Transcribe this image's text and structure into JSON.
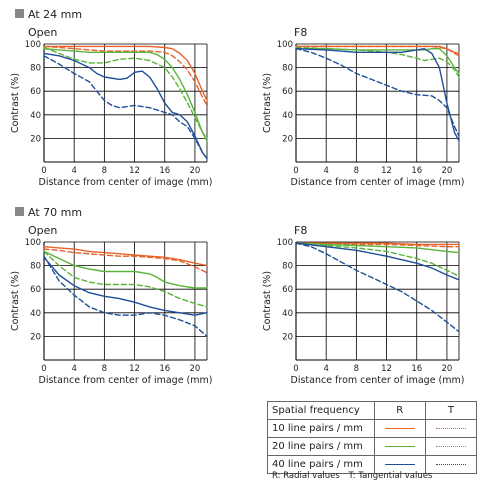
{
  "colors": {
    "10": "#e8632a",
    "20": "#5ab43a",
    "40": "#1f4f9a"
  },
  "chart_data": [
    {
      "type": "line",
      "header": "At 24 mm",
      "title": "Open",
      "xlabel": "Distance from center of image (mm)",
      "ylabel": "Contrast (%)",
      "xlim": [
        0,
        21.6
      ],
      "ylim": [
        0,
        100
      ],
      "xticks": [
        0,
        4,
        8,
        12,
        16,
        20
      ],
      "yticks": [
        20,
        40,
        60,
        80,
        100
      ],
      "grid": true,
      "series": [
        {
          "freq": "10",
          "kind": "R",
          "x": [
            0,
            2,
            4,
            6,
            8,
            10,
            12,
            14,
            16,
            17,
            18,
            19,
            20,
            21,
            21.6
          ],
          "values": [
            98,
            98,
            98,
            98,
            98,
            98,
            98,
            98,
            97,
            96,
            92,
            86,
            75,
            60,
            52
          ]
        },
        {
          "freq": "10",
          "kind": "T",
          "x": [
            0,
            2,
            4,
            6,
            8,
            10,
            12,
            14,
            16,
            17,
            18,
            19,
            20,
            21,
            21.6
          ],
          "values": [
            98,
            97,
            96,
            95,
            94,
            94,
            94,
            94,
            93,
            90,
            85,
            78,
            68,
            55,
            48
          ]
        },
        {
          "freq": "20",
          "kind": "R",
          "x": [
            0,
            2,
            4,
            6,
            8,
            10,
            12,
            14,
            15,
            16,
            17,
            18,
            19,
            20,
            21,
            21.6
          ],
          "values": [
            96,
            95,
            94,
            93,
            93,
            93,
            93,
            93,
            91,
            87,
            80,
            70,
            57,
            42,
            25,
            18
          ]
        },
        {
          "freq": "20",
          "kind": "T",
          "x": [
            0,
            2,
            4,
            6,
            8,
            10,
            12,
            14,
            16,
            17,
            18,
            19,
            20,
            21,
            21.6
          ],
          "values": [
            97,
            92,
            87,
            84,
            84,
            87,
            88,
            86,
            80,
            72,
            62,
            50,
            38,
            25,
            20
          ]
        },
        {
          "freq": "40",
          "kind": "R",
          "x": [
            0,
            2,
            4,
            6,
            7,
            8,
            10,
            11,
            12,
            13,
            14,
            15,
            16,
            17,
            18,
            19,
            20,
            21,
            21.6
          ],
          "values": [
            92,
            90,
            86,
            80,
            75,
            72,
            70,
            71,
            76,
            77,
            72,
            62,
            50,
            42,
            40,
            34,
            22,
            8,
            3
          ]
        },
        {
          "freq": "40",
          "kind": "T",
          "x": [
            0,
            2,
            4,
            6,
            7,
            8,
            9,
            10,
            12,
            14,
            16,
            17,
            18,
            19,
            20,
            21,
            21.6
          ],
          "values": [
            90,
            83,
            75,
            68,
            60,
            52,
            48,
            46,
            48,
            46,
            42,
            40,
            34,
            30,
            20,
            8,
            3
          ]
        }
      ]
    },
    {
      "type": "line",
      "title": "F8",
      "xlabel": "Distance from center of image (mm)",
      "ylabel": "Contrast (%)",
      "xlim": [
        0,
        21.6
      ],
      "ylim": [
        0,
        100
      ],
      "xticks": [
        0,
        4,
        8,
        12,
        16,
        20
      ],
      "yticks": [
        20,
        40,
        60,
        80,
        100
      ],
      "grid": true,
      "series": [
        {
          "freq": "10",
          "kind": "R",
          "x": [
            0,
            4,
            8,
            12,
            14,
            16,
            17,
            18,
            19,
            20,
            21,
            21.6
          ],
          "values": [
            98,
            98,
            98,
            98,
            98,
            98,
            98,
            98,
            98,
            96,
            93,
            92
          ]
        },
        {
          "freq": "10",
          "kind": "T",
          "x": [
            0,
            4,
            8,
            12,
            14,
            16,
            17,
            18,
            19,
            20,
            21,
            21.6
          ],
          "values": [
            98,
            98,
            98,
            98,
            98,
            98,
            98,
            98,
            97,
            96,
            92,
            90
          ]
        },
        {
          "freq": "20",
          "kind": "R",
          "x": [
            0,
            4,
            8,
            12,
            14,
            16,
            17,
            18,
            19,
            20,
            21,
            21.6
          ],
          "values": [
            96,
            96,
            95,
            95,
            95,
            95,
            95,
            96,
            96,
            90,
            80,
            75
          ]
        },
        {
          "freq": "20",
          "kind": "T",
          "x": [
            0,
            4,
            8,
            12,
            14,
            16,
            17,
            18,
            19,
            20,
            21,
            21.6
          ],
          "values": [
            97,
            96,
            95,
            93,
            91,
            88,
            86,
            87,
            88,
            85,
            78,
            72
          ]
        },
        {
          "freq": "40",
          "kind": "R",
          "x": [
            0,
            4,
            8,
            12,
            14,
            16,
            17,
            18,
            19,
            20,
            21,
            21.6
          ],
          "values": [
            96,
            95,
            93,
            93,
            93,
            95,
            96,
            92,
            80,
            50,
            25,
            18
          ]
        },
        {
          "freq": "40",
          "kind": "T",
          "x": [
            0,
            2,
            4,
            6,
            8,
            10,
            12,
            14,
            16,
            18,
            19,
            20,
            21,
            21.6
          ],
          "values": [
            96,
            93,
            88,
            82,
            75,
            70,
            65,
            60,
            57,
            56,
            52,
            46,
            30,
            22
          ]
        }
      ]
    },
    {
      "type": "line",
      "header": "At 70 mm",
      "title": "Open",
      "xlabel": "Distance from center of image (mm)",
      "ylabel": "Contrast (%)",
      "xlim": [
        0,
        21.6
      ],
      "ylim": [
        0,
        100
      ],
      "xticks": [
        0,
        4,
        8,
        12,
        16,
        20
      ],
      "yticks": [
        20,
        40,
        60,
        80,
        100
      ],
      "grid": true,
      "series": [
        {
          "freq": "10",
          "kind": "R",
          "x": [
            0,
            2,
            4,
            6,
            8,
            10,
            12,
            14,
            16,
            18,
            20,
            21.6
          ],
          "values": [
            96,
            95,
            94,
            92,
            91,
            90,
            89,
            88,
            87,
            85,
            82,
            80
          ]
        },
        {
          "freq": "10",
          "kind": "T",
          "x": [
            0,
            2,
            4,
            6,
            8,
            10,
            12,
            14,
            16,
            18,
            20,
            21.6
          ],
          "values": [
            94,
            93,
            91,
            90,
            89,
            88,
            88,
            87,
            86,
            84,
            79,
            74
          ]
        },
        {
          "freq": "20",
          "kind": "R",
          "x": [
            0,
            2,
            4,
            6,
            8,
            10,
            12,
            14,
            15,
            16,
            18,
            20,
            21.6
          ],
          "values": [
            92,
            86,
            80,
            77,
            75,
            75,
            75,
            73,
            70,
            66,
            63,
            61,
            61
          ]
        },
        {
          "freq": "20",
          "kind": "T",
          "x": [
            0,
            2,
            4,
            6,
            8,
            10,
            12,
            14,
            16,
            18,
            20,
            21.6
          ],
          "values": [
            92,
            80,
            70,
            66,
            64,
            64,
            64,
            62,
            58,
            52,
            48,
            45
          ]
        },
        {
          "freq": "40",
          "kind": "R",
          "x": [
            0,
            2,
            4,
            6,
            8,
            10,
            12,
            14,
            16,
            18,
            20,
            21.6
          ],
          "values": [
            87,
            72,
            63,
            57,
            54,
            52,
            49,
            45,
            42,
            40,
            38,
            40
          ]
        },
        {
          "freq": "40",
          "kind": "T",
          "x": [
            0,
            2,
            4,
            6,
            8,
            10,
            12,
            14,
            16,
            18,
            20,
            21.6
          ],
          "values": [
            88,
            67,
            55,
            45,
            40,
            38,
            38,
            40,
            38,
            34,
            29,
            20
          ]
        }
      ]
    },
    {
      "type": "line",
      "title": "F8",
      "xlabel": "Distance from center of image (mm)",
      "ylabel": "Contrast (%)",
      "xlim": [
        0,
        21.6
      ],
      "ylim": [
        0,
        100
      ],
      "xticks": [
        0,
        4,
        8,
        12,
        16,
        20
      ],
      "yticks": [
        20,
        40,
        60,
        80,
        100
      ],
      "grid": true,
      "series": [
        {
          "freq": "10",
          "kind": "R",
          "x": [
            0,
            4,
            8,
            12,
            16,
            20,
            21.6
          ],
          "values": [
            99,
            99,
            99,
            99,
            98,
            98,
            98
          ]
        },
        {
          "freq": "10",
          "kind": "T",
          "x": [
            0,
            4,
            8,
            12,
            16,
            20,
            21.6
          ],
          "values": [
            99,
            99,
            98,
            98,
            97,
            96,
            96
          ]
        },
        {
          "freq": "20",
          "kind": "R",
          "x": [
            0,
            4,
            8,
            12,
            16,
            20,
            21.6
          ],
          "values": [
            99,
            98,
            97,
            96,
            95,
            92,
            91
          ]
        },
        {
          "freq": "20",
          "kind": "T",
          "x": [
            0,
            4,
            8,
            12,
            14,
            16,
            18,
            20,
            21.6
          ],
          "values": [
            99,
            97,
            95,
            92,
            89,
            86,
            82,
            76,
            71
          ]
        },
        {
          "freq": "40",
          "kind": "R",
          "x": [
            0,
            4,
            8,
            12,
            14,
            16,
            18,
            20,
            21.6
          ],
          "values": [
            99,
            96,
            93,
            88,
            85,
            82,
            78,
            72,
            68
          ]
        },
        {
          "freq": "40",
          "kind": "T",
          "x": [
            0,
            2,
            4,
            6,
            8,
            10,
            12,
            14,
            16,
            18,
            20,
            21.6
          ],
          "values": [
            99,
            96,
            90,
            83,
            76,
            70,
            64,
            58,
            50,
            42,
            32,
            24
          ]
        }
      ]
    }
  ],
  "legend": {
    "header": "Spatial frequency",
    "r": "R",
    "t": "T",
    "rows": [
      {
        "label": "10 line pairs / mm",
        "freq": "10"
      },
      {
        "label": "20 line pairs / mm",
        "freq": "20"
      },
      {
        "label": "40 line pairs / mm",
        "freq": "40"
      }
    ]
  },
  "footnote": {
    "r": "R: Radial values",
    "t": "T: Tangential values"
  }
}
